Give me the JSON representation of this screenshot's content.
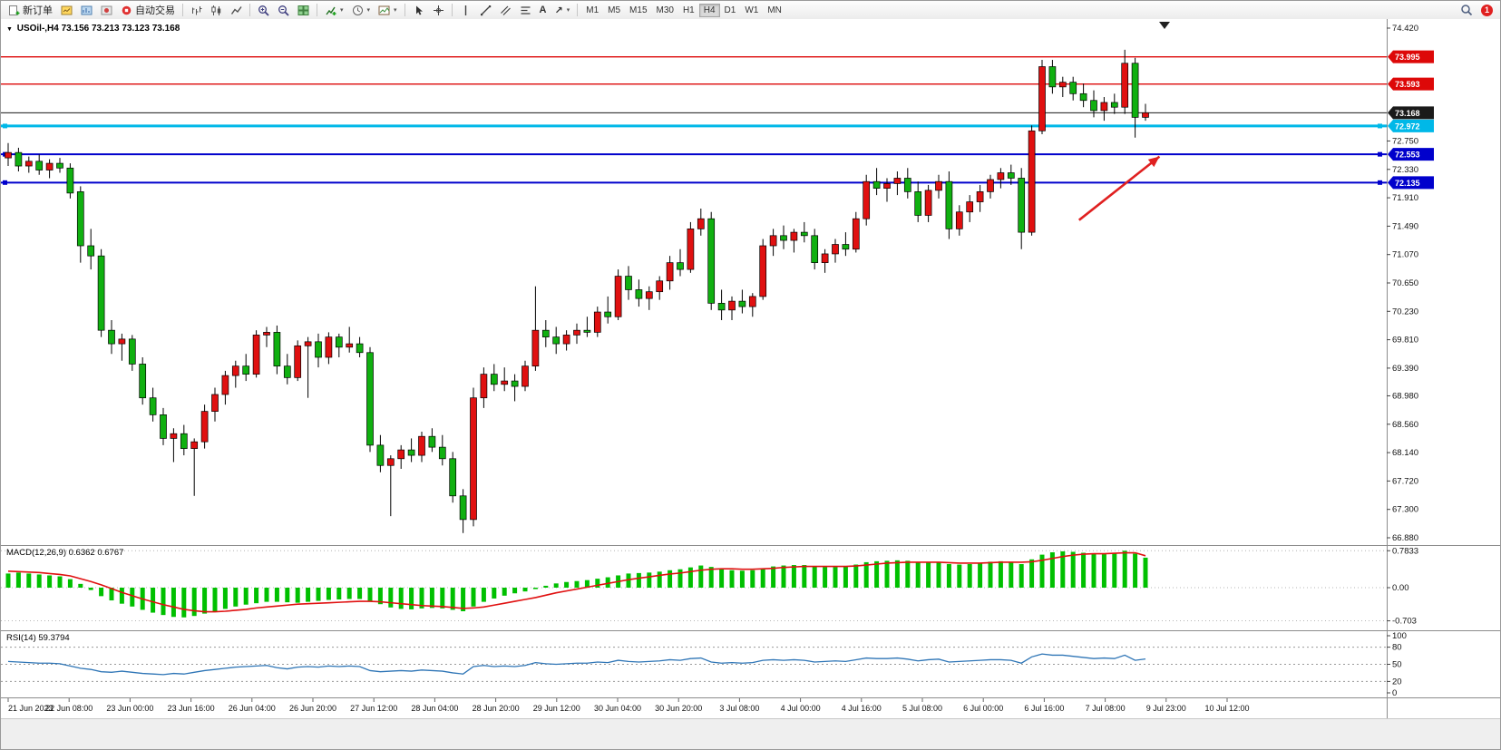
{
  "toolbar": {
    "new_order": "新订单",
    "autotrading": "自动交易",
    "timeframes": [
      "M1",
      "M5",
      "M15",
      "M30",
      "H1",
      "H4",
      "D1",
      "W1",
      "MN"
    ],
    "active_timeframe": "H4",
    "notification_count": "1"
  },
  "icons": {
    "collapse_glyph": "▼",
    "caret_glyph": "▾",
    "text_tool_glyph": "A",
    "arrow_tool_glyph": "↗"
  },
  "main_chart": {
    "header": "USOil-,H4  73.156 73.213 73.123 73.168"
  },
  "macd_panel": {
    "header": "MACD(12,26,9) 0.6362 0.6767"
  },
  "rsi_panel": {
    "header": "RSI(14) 59.3794"
  },
  "chart_data": [
    {
      "type": "candlestick",
      "symbol": "USOil-",
      "period": "H4",
      "ohlc_display": {
        "open": 73.156,
        "high": 73.213,
        "low": 73.123,
        "close": 73.168
      },
      "ylim": [
        66.88,
        74.42
      ],
      "y_tick_labels": [
        "74.420",
        "72.750",
        "72.330",
        "71.910",
        "71.490",
        "71.070",
        "70.650",
        "70.230",
        "69.810",
        "69.390",
        "68.980",
        "68.560",
        "68.140",
        "67.720",
        "67.300",
        "66.880"
      ],
      "price_lines": [
        {
          "price": 73.995,
          "label": "73.995",
          "color": "#dd0808",
          "width": 1.4,
          "handles": false
        },
        {
          "price": 73.593,
          "label": "73.593",
          "color": "#dd0808",
          "width": 1.4,
          "handles": false
        },
        {
          "price": 73.168,
          "label": "73.168",
          "color": "#1a1a1a",
          "width": 1,
          "handles": false
        },
        {
          "price": 72.972,
          "label": "72.972",
          "color": "#00b8e8",
          "width": 3,
          "handles": true
        },
        {
          "price": 72.553,
          "label": "72.553",
          "color": "#0000cc",
          "width": 2,
          "handles": true
        },
        {
          "price": 72.135,
          "label": "72.135",
          "color": "#0000cc",
          "width": 2,
          "handles": true
        }
      ],
      "x_labels": [
        "21 Jun 2023",
        "22 Jun 08:00",
        "23 Jun 00:00",
        "23 Jun 16:00",
        "26 Jun 04:00",
        "26 Jun 20:00",
        "27 Jun 12:00",
        "28 Jun 04:00",
        "28 Jun 20:00",
        "29 Jun 12:00",
        "30 Jun 04:00",
        "30 Jun 20:00",
        "3 Jul 08:00",
        "4 Jul 00:00",
        "4 Jul 16:00",
        "5 Jul 08:00",
        "6 Jul 00:00",
        "6 Jul 16:00",
        "7 Jul 08:00",
        "9 Jul 23:00",
        "10 Jul 12:00"
      ],
      "colors": {
        "up": "#e01010",
        "down": "#10b010",
        "outline": "#000000"
      },
      "annotation": {
        "type": "arrow",
        "color": "#e02020",
        "x1_frac": 0.778,
        "price1": 71.58,
        "x2_frac": 0.836,
        "price2": 72.52
      },
      "candles": [
        [
          72.5,
          72.72,
          72.38,
          72.58
        ],
        [
          72.58,
          72.65,
          72.3,
          72.38
        ],
        [
          72.38,
          72.52,
          72.28,
          72.45
        ],
        [
          72.45,
          72.55,
          72.25,
          72.32
        ],
        [
          72.32,
          72.48,
          72.2,
          72.42
        ],
        [
          72.42,
          72.5,
          72.28,
          72.35
        ],
        [
          72.35,
          72.42,
          71.9,
          71.98
        ],
        [
          72.0,
          72.08,
          70.95,
          71.2
        ],
        [
          71.2,
          71.45,
          70.85,
          71.05
        ],
        [
          71.05,
          71.15,
          69.85,
          69.95
        ],
        [
          69.95,
          70.1,
          69.6,
          69.75
        ],
        [
          69.75,
          69.9,
          69.5,
          69.82
        ],
        [
          69.82,
          69.88,
          69.35,
          69.45
        ],
        [
          69.45,
          69.55,
          68.85,
          68.95
        ],
        [
          68.95,
          69.1,
          68.6,
          68.7
        ],
        [
          68.7,
          68.8,
          68.25,
          68.35
        ],
        [
          68.35,
          68.5,
          68.0,
          68.42
        ],
        [
          68.42,
          68.55,
          68.1,
          68.2
        ],
        [
          68.2,
          68.35,
          67.5,
          68.3
        ],
        [
          68.3,
          68.85,
          68.2,
          68.75
        ],
        [
          68.75,
          69.1,
          68.6,
          69.0
        ],
        [
          69.0,
          69.35,
          68.85,
          69.28
        ],
        [
          69.28,
          69.5,
          69.1,
          69.42
        ],
        [
          69.42,
          69.6,
          69.2,
          69.3
        ],
        [
          69.3,
          69.95,
          69.25,
          69.88
        ],
        [
          69.88,
          70.0,
          69.7,
          69.92
        ],
        [
          69.92,
          70.02,
          69.3,
          69.42
        ],
        [
          69.42,
          69.6,
          69.15,
          69.25
        ],
        [
          69.25,
          69.8,
          69.2,
          69.72
        ],
        [
          69.72,
          69.85,
          68.95,
          69.78
        ],
        [
          69.78,
          69.9,
          69.4,
          69.55
        ],
        [
          69.55,
          69.92,
          69.45,
          69.85
        ],
        [
          69.85,
          69.9,
          69.55,
          69.7
        ],
        [
          69.7,
          70.0,
          69.62,
          69.75
        ],
        [
          69.75,
          69.85,
          69.55,
          69.62
        ],
        [
          69.62,
          69.7,
          68.15,
          68.25
        ],
        [
          68.25,
          68.4,
          67.85,
          67.95
        ],
        [
          67.95,
          68.1,
          67.2,
          68.05
        ],
        [
          68.05,
          68.25,
          67.9,
          68.18
        ],
        [
          68.18,
          68.35,
          68.0,
          68.1
        ],
        [
          68.1,
          68.45,
          68.0,
          68.38
        ],
        [
          68.38,
          68.5,
          68.15,
          68.22
        ],
        [
          68.22,
          68.4,
          67.95,
          68.05
        ],
        [
          68.05,
          68.15,
          67.4,
          67.5
        ],
        [
          67.5,
          67.6,
          66.95,
          67.15
        ],
        [
          67.15,
          69.1,
          67.05,
          68.95
        ],
        [
          68.95,
          69.4,
          68.8,
          69.3
        ],
        [
          69.3,
          69.45,
          69.05,
          69.15
        ],
        [
          69.15,
          69.4,
          69.05,
          69.2
        ],
        [
          69.2,
          69.3,
          68.9,
          69.12
        ],
        [
          69.12,
          69.5,
          69.05,
          69.42
        ],
        [
          69.42,
          70.6,
          69.35,
          69.95
        ],
        [
          69.95,
          70.1,
          69.7,
          69.85
        ],
        [
          69.85,
          70.0,
          69.6,
          69.75
        ],
        [
          69.75,
          69.95,
          69.65,
          69.88
        ],
        [
          69.88,
          70.05,
          69.75,
          69.95
        ],
        [
          69.95,
          70.15,
          69.85,
          69.92
        ],
        [
          69.92,
          70.3,
          69.85,
          70.22
        ],
        [
          70.22,
          70.45,
          70.05,
          70.15
        ],
        [
          70.15,
          70.85,
          70.1,
          70.75
        ],
        [
          70.75,
          70.9,
          70.4,
          70.55
        ],
        [
          70.55,
          70.7,
          70.3,
          70.42
        ],
        [
          70.42,
          70.6,
          70.25,
          70.52
        ],
        [
          70.52,
          70.75,
          70.4,
          70.68
        ],
        [
          70.68,
          71.05,
          70.55,
          70.95
        ],
        [
          70.95,
          71.15,
          70.75,
          70.85
        ],
        [
          70.85,
          71.55,
          70.8,
          71.45
        ],
        [
          71.45,
          71.75,
          71.35,
          71.6
        ],
        [
          71.6,
          71.7,
          70.25,
          70.35
        ],
        [
          70.35,
          70.55,
          70.1,
          70.25
        ],
        [
          70.25,
          70.45,
          70.1,
          70.38
        ],
        [
          70.38,
          70.55,
          70.2,
          70.3
        ],
        [
          70.3,
          70.5,
          70.15,
          70.45
        ],
        [
          70.45,
          71.3,
          70.4,
          71.2
        ],
        [
          71.2,
          71.45,
          71.05,
          71.35
        ],
        [
          71.35,
          71.5,
          71.15,
          71.28
        ],
        [
          71.28,
          71.45,
          71.1,
          71.4
        ],
        [
          71.4,
          71.55,
          71.25,
          71.35
        ],
        [
          71.35,
          71.45,
          70.85,
          70.95
        ],
        [
          70.95,
          71.15,
          70.8,
          71.08
        ],
        [
          71.08,
          71.3,
          70.95,
          71.22
        ],
        [
          71.22,
          71.4,
          71.05,
          71.15
        ],
        [
          71.15,
          71.7,
          71.1,
          71.6
        ],
        [
          71.6,
          72.25,
          71.5,
          72.15
        ],
        [
          72.15,
          72.35,
          71.95,
          72.05
        ],
        [
          72.05,
          72.2,
          71.85,
          72.12
        ],
        [
          72.12,
          72.3,
          71.95,
          72.2
        ],
        [
          72.2,
          72.35,
          71.9,
          72.0
        ],
        [
          72.0,
          72.15,
          71.55,
          71.65
        ],
        [
          71.65,
          72.1,
          71.55,
          72.02
        ],
        [
          72.02,
          72.25,
          71.9,
          72.15
        ],
        [
          72.15,
          72.3,
          71.3,
          71.45
        ],
        [
          71.45,
          71.8,
          71.35,
          71.7
        ],
        [
          71.7,
          71.95,
          71.55,
          71.85
        ],
        [
          71.85,
          72.1,
          71.7,
          72.0
        ],
        [
          72.0,
          72.25,
          71.9,
          72.18
        ],
        [
          72.18,
          72.35,
          72.05,
          72.28
        ],
        [
          72.28,
          72.4,
          72.1,
          72.2
        ],
        [
          72.2,
          72.35,
          71.15,
          71.4
        ],
        [
          71.4,
          72.98,
          71.35,
          72.9
        ],
        [
          72.9,
          73.95,
          72.85,
          73.85
        ],
        [
          73.85,
          73.95,
          73.45,
          73.55
        ],
        [
          73.55,
          73.7,
          73.4,
          73.62
        ],
        [
          73.62,
          73.7,
          73.35,
          73.45
        ],
        [
          73.45,
          73.6,
          73.25,
          73.35
        ],
        [
          73.35,
          73.5,
          73.1,
          73.2
        ],
        [
          73.2,
          73.4,
          73.05,
          73.32
        ],
        [
          73.32,
          73.45,
          73.15,
          73.25
        ],
        [
          73.25,
          74.1,
          73.15,
          73.9
        ],
        [
          73.9,
          73.98,
          72.8,
          73.1
        ],
        [
          73.1,
          73.3,
          73.05,
          73.168
        ]
      ]
    },
    {
      "type": "bar",
      "name": "MACD",
      "params": "12,26,9",
      "value_main": 0.6362,
      "value_signal": 0.6767,
      "scale_labels": [
        "0.7833",
        "0.00",
        "-0.703"
      ],
      "scale_values": [
        0.7833,
        0,
        -0.703
      ],
      "colors": {
        "histogram": "#00c000",
        "signal": "#e01010"
      },
      "histogram": [
        0.3,
        0.32,
        0.3,
        0.28,
        0.26,
        0.24,
        0.18,
        0.08,
        -0.05,
        -0.18,
        -0.27,
        -0.34,
        -0.4,
        -0.47,
        -0.53,
        -0.58,
        -0.62,
        -0.63,
        -0.6,
        -0.55,
        -0.5,
        -0.45,
        -0.4,
        -0.36,
        -0.33,
        -0.3,
        -0.3,
        -0.31,
        -0.32,
        -0.3,
        -0.28,
        -0.26,
        -0.25,
        -0.24,
        -0.24,
        -0.28,
        -0.35,
        -0.42,
        -0.45,
        -0.46,
        -0.44,
        -0.43,
        -0.44,
        -0.47,
        -0.5,
        -0.4,
        -0.3,
        -0.23,
        -0.17,
        -0.12,
        -0.08,
        -0.03,
        0.04,
        0.09,
        0.12,
        0.14,
        0.16,
        0.19,
        0.22,
        0.26,
        0.3,
        0.31,
        0.32,
        0.34,
        0.37,
        0.39,
        0.43,
        0.47,
        0.44,
        0.4,
        0.37,
        0.36,
        0.37,
        0.41,
        0.45,
        0.47,
        0.48,
        0.48,
        0.45,
        0.44,
        0.44,
        0.45,
        0.49,
        0.54,
        0.56,
        0.57,
        0.58,
        0.57,
        0.54,
        0.53,
        0.54,
        0.5,
        0.49,
        0.5,
        0.52,
        0.55,
        0.56,
        0.55,
        0.5,
        0.6,
        0.7,
        0.75,
        0.77,
        0.76,
        0.74,
        0.72,
        0.71,
        0.74,
        0.7833,
        0.72,
        0.6362
      ],
      "signal": [
        0.35,
        0.34,
        0.33,
        0.32,
        0.3,
        0.28,
        0.25,
        0.19,
        0.13,
        0.06,
        -0.02,
        -0.1,
        -0.17,
        -0.24,
        -0.3,
        -0.36,
        -0.41,
        -0.46,
        -0.49,
        -0.51,
        -0.51,
        -0.5,
        -0.48,
        -0.46,
        -0.43,
        -0.41,
        -0.39,
        -0.37,
        -0.35,
        -0.34,
        -0.33,
        -0.32,
        -0.31,
        -0.3,
        -0.29,
        -0.29,
        -0.3,
        -0.32,
        -0.34,
        -0.36,
        -0.38,
        -0.39,
        -0.4,
        -0.42,
        -0.44,
        -0.43,
        -0.41,
        -0.37,
        -0.33,
        -0.29,
        -0.25,
        -0.21,
        -0.16,
        -0.11,
        -0.07,
        -0.03,
        0.01,
        0.05,
        0.09,
        0.13,
        0.17,
        0.2,
        0.23,
        0.26,
        0.29,
        0.31,
        0.34,
        0.37,
        0.39,
        0.4,
        0.4,
        0.39,
        0.39,
        0.4,
        0.41,
        0.43,
        0.44,
        0.45,
        0.45,
        0.45,
        0.45,
        0.45,
        0.46,
        0.48,
        0.5,
        0.52,
        0.53,
        0.54,
        0.54,
        0.54,
        0.54,
        0.53,
        0.52,
        0.52,
        0.52,
        0.53,
        0.54,
        0.54,
        0.54,
        0.55,
        0.58,
        0.62,
        0.66,
        0.69,
        0.71,
        0.72,
        0.72,
        0.73,
        0.74,
        0.74,
        0.6767
      ]
    },
    {
      "type": "line",
      "name": "RSI",
      "params": "14",
      "value": 59.3794,
      "ylim": [
        0,
        100
      ],
      "levels": [
        80,
        50,
        20
      ],
      "scale_labels": [
        "100",
        "80",
        "50",
        "20",
        "0"
      ],
      "scale_values": [
        100,
        80,
        50,
        20,
        0
      ],
      "color": "#2e75b6",
      "values": [
        55,
        54,
        53,
        52,
        52,
        51,
        47,
        43,
        41,
        37,
        36,
        38,
        36,
        34,
        33,
        32,
        34,
        33,
        36,
        39,
        41,
        43,
        45,
        46,
        47,
        48,
        44,
        42,
        45,
        46,
        45,
        47,
        46,
        47,
        46,
        39,
        37,
        38,
        39,
        38,
        40,
        39,
        38,
        35,
        33,
        46,
        48,
        46,
        47,
        46,
        48,
        53,
        51,
        50,
        51,
        52,
        52,
        54,
        53,
        57,
        55,
        54,
        55,
        56,
        58,
        57,
        60,
        61,
        54,
        52,
        53,
        52,
        53,
        57,
        58,
        57,
        58,
        57,
        54,
        55,
        56,
        55,
        58,
        61,
        60,
        60,
        61,
        59,
        56,
        58,
        59,
        54,
        55,
        56,
        57,
        58,
        58,
        57,
        52,
        63,
        68,
        66,
        66,
        64,
        62,
        60,
        61,
        60,
        66,
        57,
        59.38
      ]
    }
  ]
}
